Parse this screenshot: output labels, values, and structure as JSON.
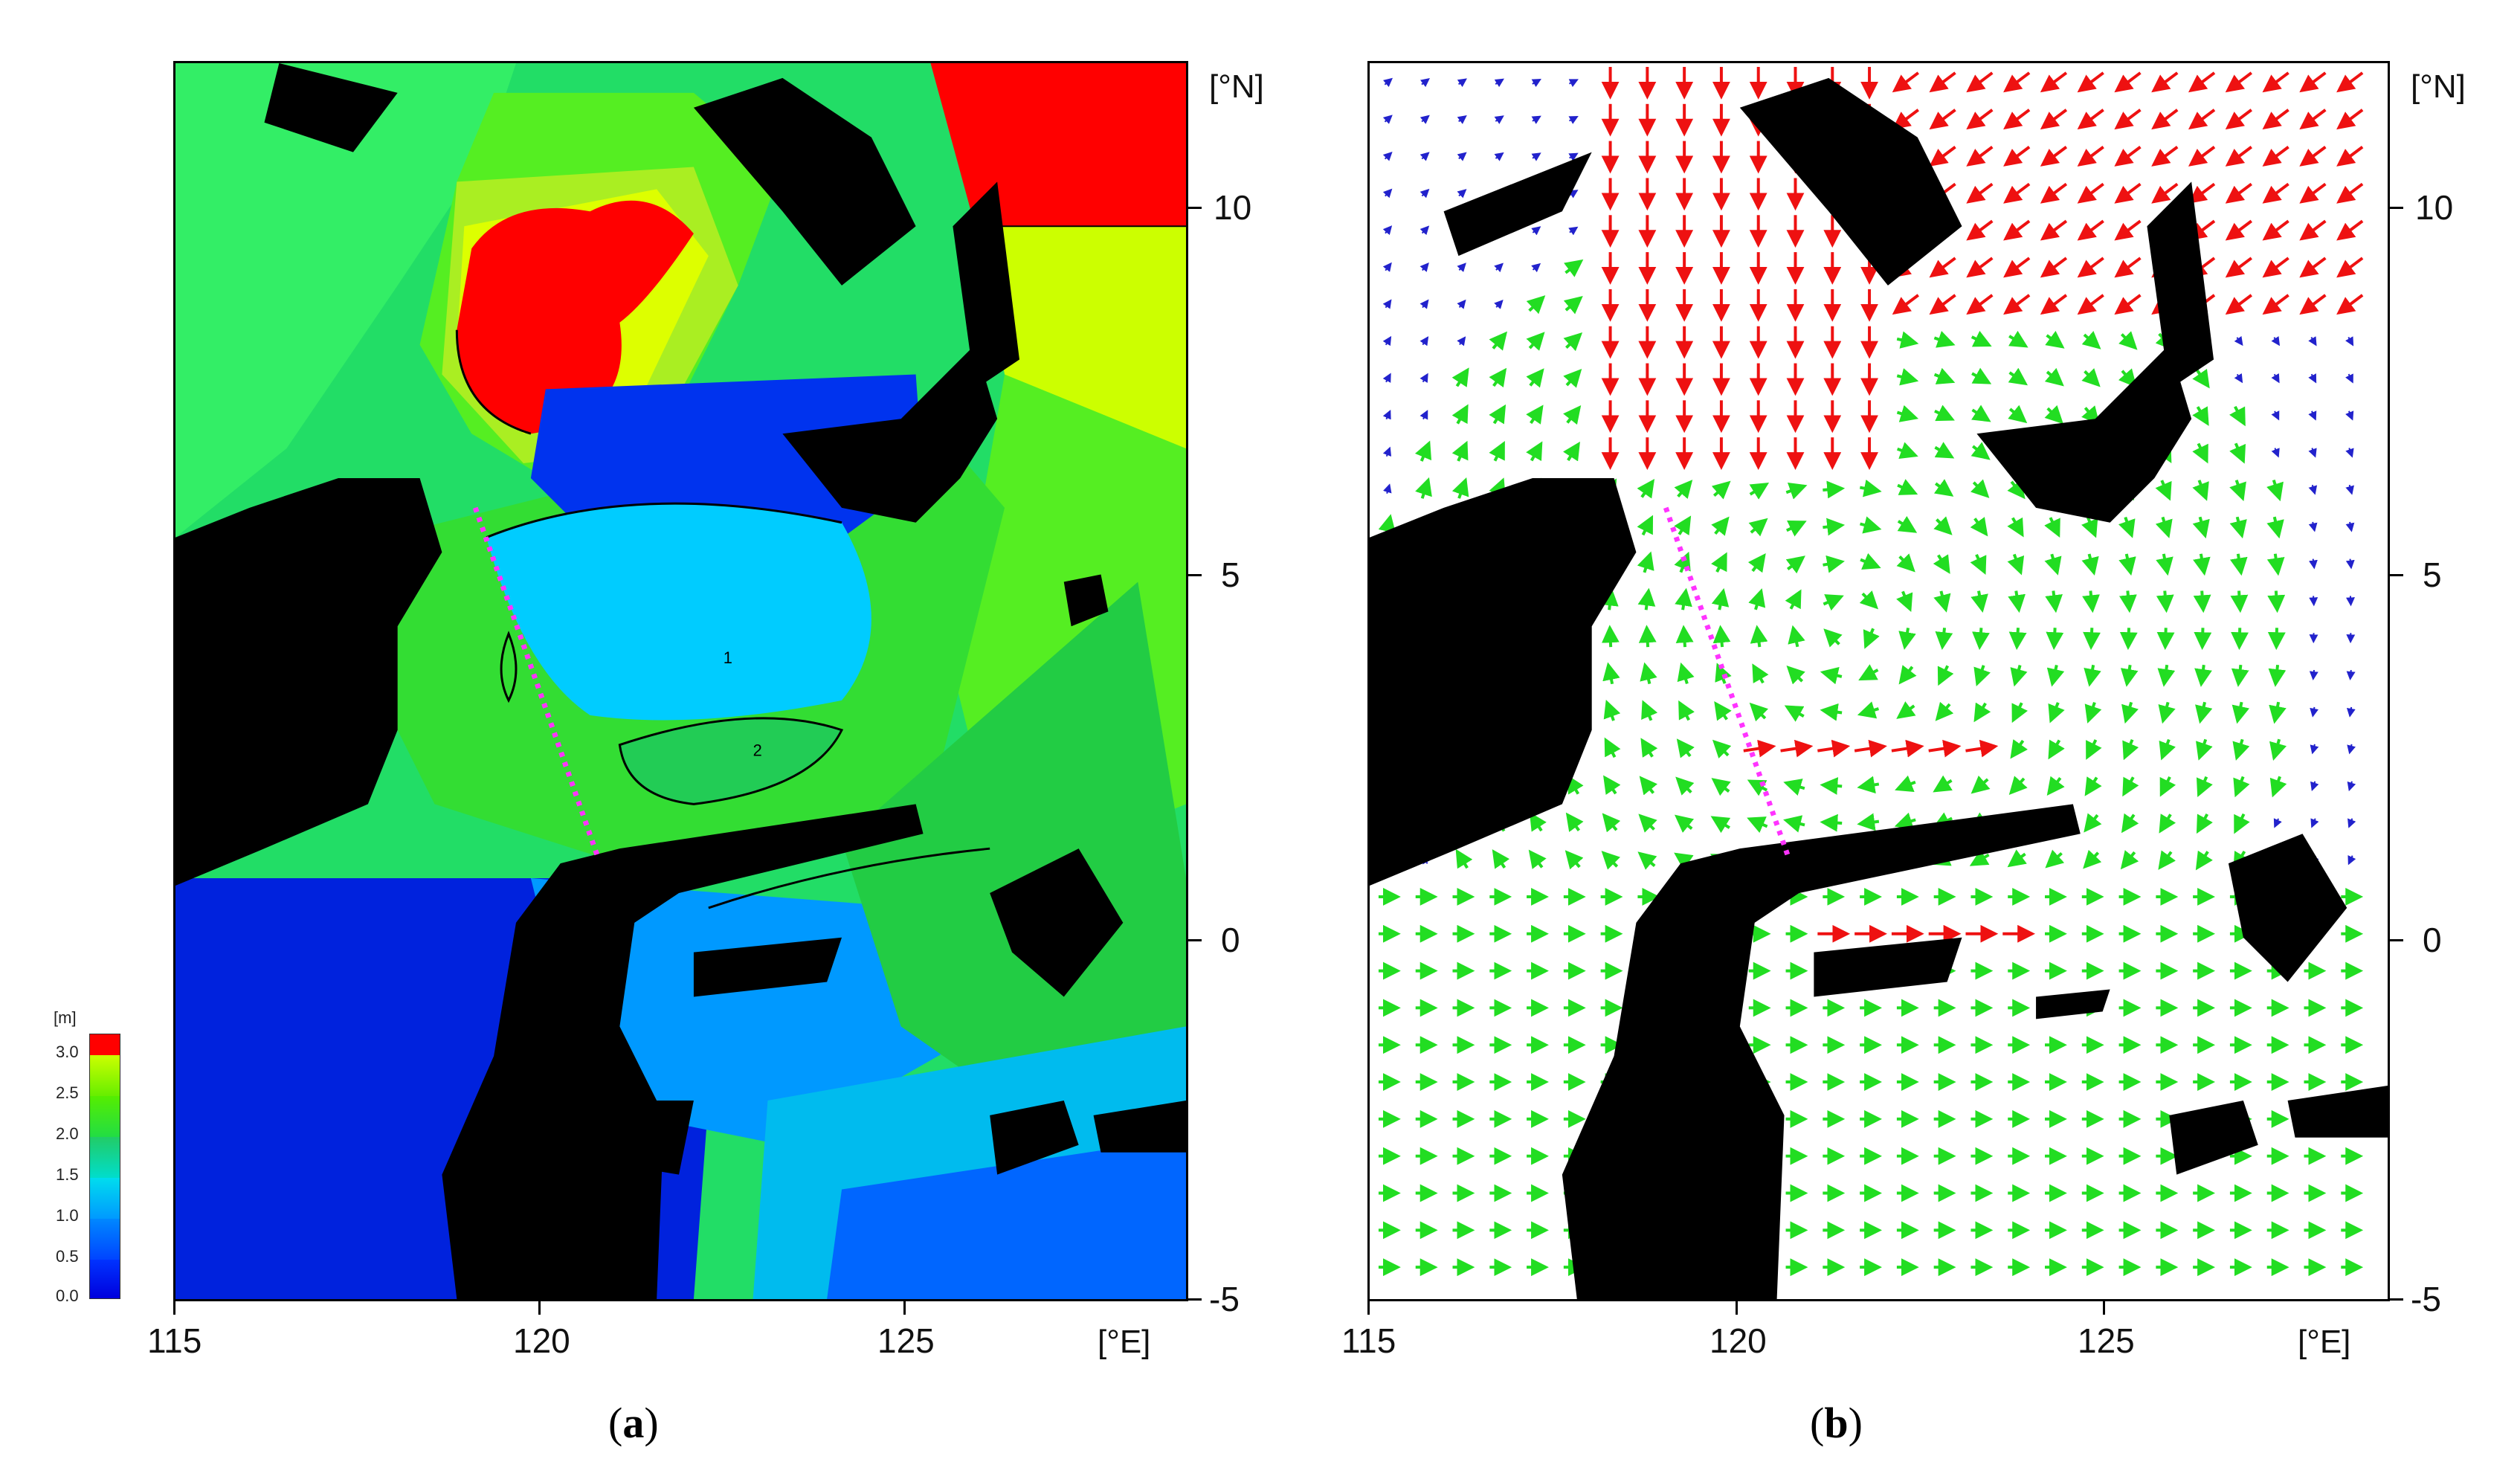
{
  "panels": [
    {
      "id": "a",
      "caption_open": "(",
      "caption_letter": "a",
      "caption_close": ")",
      "lon_ticks": [
        "115",
        "120",
        "125"
      ],
      "lon_unit": "[°E]",
      "lat_ticks": [
        "10",
        "5",
        "0",
        "-5"
      ],
      "lat_unit": "[°N]",
      "colorbar": {
        "unit": "[m]",
        "labels": [
          "3.0",
          "2.5",
          "2.0",
          "1.5",
          "1.0",
          "0.5",
          "0.0"
        ],
        "colors": [
          "#ff0000",
          "#ccff00",
          "#33dd00",
          "#22cc55",
          "#00dddd",
          "#0088ff",
          "#0000ee"
        ]
      },
      "contour_labels": [
        "1",
        "2",
        "1"
      ]
    },
    {
      "id": "b",
      "caption_open": "(",
      "caption_letter": "b",
      "caption_close": ")",
      "lon_ticks": [
        "115",
        "120",
        "125"
      ],
      "lon_unit": "[°E]",
      "lat_ticks": [
        "10",
        "5",
        "0",
        "-5"
      ],
      "lat_unit": "[°N]"
    }
  ],
  "colors": {
    "land": "#000000",
    "section_line": "#ff33ff",
    "arrow_strong": "#ee1111",
    "arrow_medium": "#22dd22",
    "arrow_weak": "#2222cc"
  }
}
